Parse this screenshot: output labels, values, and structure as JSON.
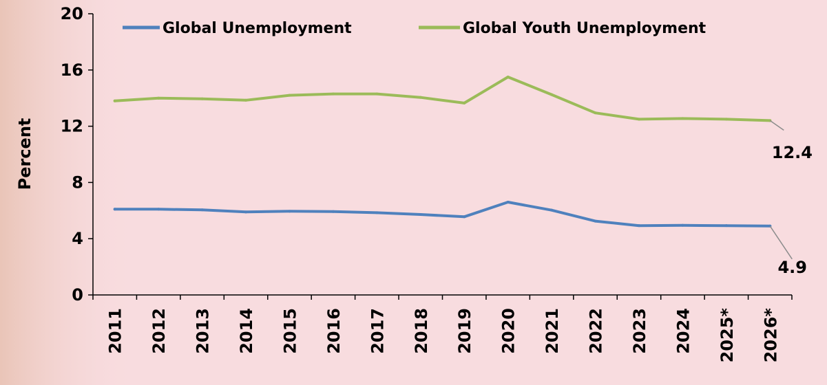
{
  "chart_data": {
    "type": "line",
    "title": "",
    "xlabel": "",
    "ylabel": "Percent",
    "ylim": [
      0,
      20
    ],
    "yticks": [
      "0",
      "4",
      "8",
      "12",
      "16",
      "20"
    ],
    "categories": [
      "2011",
      "2012",
      "2013",
      "2014",
      "2015",
      "2016",
      "2017",
      "2018",
      "2019",
      "2020",
      "2021",
      "2022",
      "2023",
      "2024",
      "2025*",
      "2026*"
    ],
    "series": [
      {
        "name": "Global Unemployment",
        "color": "#4f81bd",
        "values": [
          6.1,
          6.1,
          6.05,
          5.9,
          5.95,
          5.93,
          5.85,
          5.72,
          5.56,
          6.6,
          6.03,
          5.25,
          4.93,
          4.95,
          4.93,
          4.9
        ],
        "end_label": "4.9"
      },
      {
        "name": "Global Youth Unemployment",
        "color": "#9bbb59",
        "values": [
          13.8,
          14.0,
          13.95,
          13.85,
          14.2,
          14.3,
          14.3,
          14.05,
          13.65,
          15.5,
          14.25,
          12.95,
          12.5,
          12.55,
          12.5,
          12.4
        ],
        "end_label": "12.4"
      }
    ],
    "legend_position": "top",
    "grid": false
  }
}
